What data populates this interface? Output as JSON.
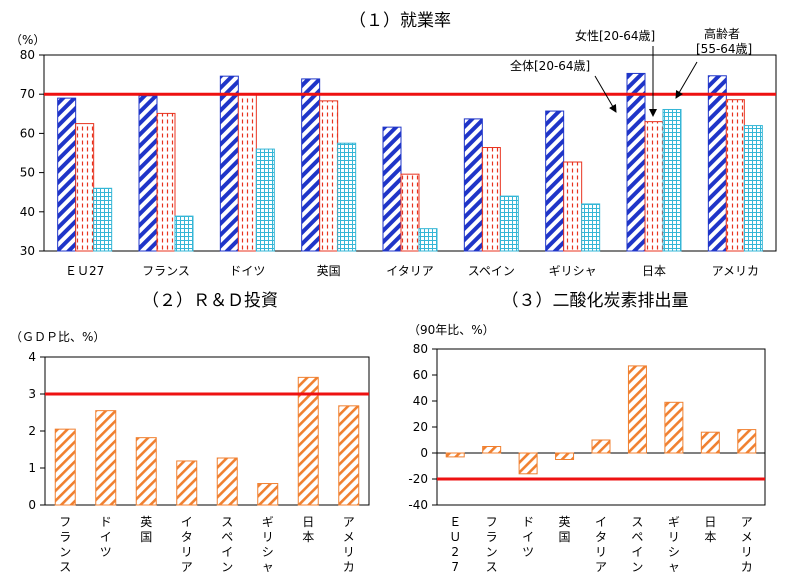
{
  "chart_data": [
    {
      "type": "bar",
      "title": "（１）就業率",
      "unit_label": "（%）",
      "categories": [
        "ＥＵ27",
        "フランス",
        "ドイツ",
        "英国",
        "イタリア",
        "スペイン",
        "ギリシャ",
        "日本",
        "アメリカ"
      ],
      "series": [
        {
          "key": "all",
          "values": [
            69.0,
            69.6,
            74.6,
            73.9,
            61.6,
            63.7,
            65.7,
            75.3,
            74.7
          ]
        },
        {
          "key": "female",
          "values": [
            62.5,
            65.1,
            70.0,
            68.3,
            49.6,
            56.4,
            52.7,
            63.0,
            68.6
          ]
        },
        {
          "key": "elderly",
          "values": [
            46.0,
            38.9,
            56.0,
            57.5,
            35.7,
            44.0,
            42.0,
            66.1,
            62.0
          ]
        }
      ],
      "ylim": [
        30,
        80
      ],
      "yticks": [
        30,
        40,
        50,
        60,
        70,
        80
      ],
      "reference_line": 70,
      "annotations": {
        "all": [
          "全体[20-64歳]"
        ],
        "female": [
          "女性[20-64歳]"
        ],
        "elderly": [
          "高齢者",
          "[55-64歳]"
        ]
      }
    },
    {
      "type": "bar",
      "title": "（２）Ｒ＆Ｄ投資",
      "unit_label": "（ＧＤＰ比、%）",
      "categories": [
        "フランス",
        "ドイツ",
        "英国",
        "イタリア",
        "スペイン",
        "ギリシャ",
        "日本",
        "アメリカ"
      ],
      "values": [
        2.05,
        2.55,
        1.82,
        1.19,
        1.27,
        0.58,
        3.45,
        2.68
      ],
      "ylim": [
        0,
        4
      ],
      "yticks": [
        0,
        1,
        2,
        3,
        4
      ],
      "reference_line": 3
    },
    {
      "type": "bar",
      "title": "（３）二酸化炭素排出量",
      "unit_label": "（90年比、%）",
      "categories": [
        "ＥＵ27",
        "フランス",
        "ドイツ",
        "英国",
        "イタリア",
        "スペイン",
        "ギリシャ",
        "日本",
        "アメリカ"
      ],
      "values": [
        -3,
        5,
        -16,
        -5,
        10,
        67,
        39,
        16,
        18
      ],
      "ylim": [
        -40,
        80
      ],
      "yticks": [
        -40,
        -20,
        0,
        20,
        40,
        60,
        80
      ],
      "reference_line": -20
    }
  ],
  "colors": {
    "all": "#1f35c8",
    "female": "#e8331f",
    "elderly": "#35b6d6",
    "orange": "#f08030",
    "reference": "#ee1111"
  }
}
